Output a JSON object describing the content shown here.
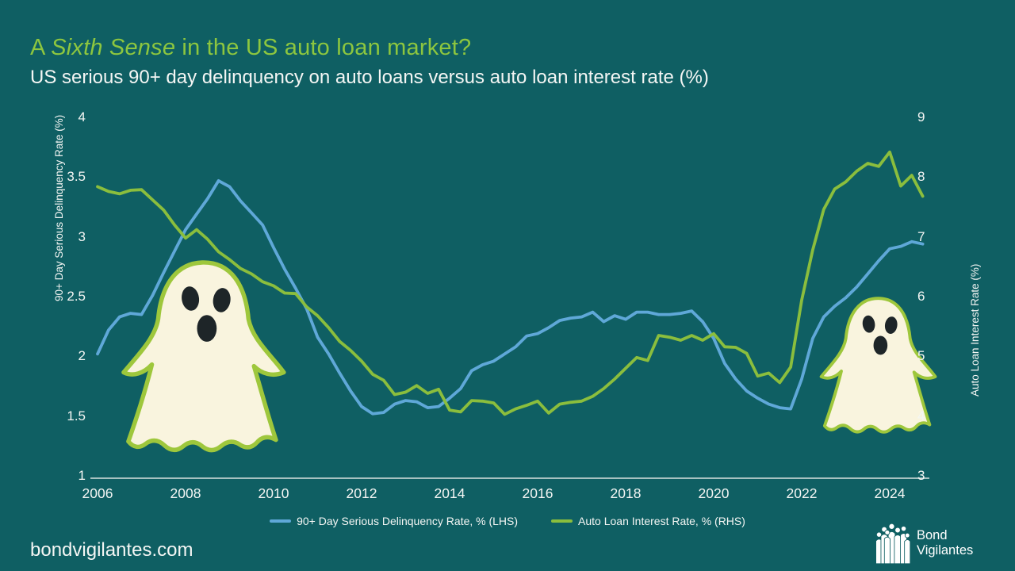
{
  "slide": {
    "title": {
      "prefix": "A ",
      "italic": "Sixth Sense",
      "suffix": " in the US auto loan market?"
    },
    "subtitle": "US serious 90+ day delinquency on auto loans versus auto loan interest rate (%)",
    "footer_url": "bondvigilantes.com",
    "logo": {
      "icon": "bond-vigilantes-people-icon",
      "line1": "Bond",
      "line2": "Vigilantes"
    }
  },
  "colors": {
    "background": "#0F5F63",
    "title_green": "#8DC63F",
    "text": "#F4F6F4",
    "delinquency_blue": "#5FA8D8",
    "interest_green": "#8BBE3D",
    "ghost_fill": "#F9F4DE",
    "ghost_stroke": "#9EC73C",
    "axis_line": "#D9E2E0"
  },
  "chart_data": {
    "type": "line",
    "title": "US serious 90+ day delinquency on auto loans versus auto loan interest rate (%)",
    "grid": false,
    "legend_position": "bottom",
    "x_axis": {
      "label": "",
      "ticks": [
        2006,
        2008,
        2010,
        2012,
        2014,
        2016,
        2018,
        2020,
        2022,
        2024
      ],
      "range": [
        2005.9,
        2025.2
      ]
    },
    "left_axis": {
      "label": "90+ Day Serious Delinquency Rate (%)",
      "ticks": [
        1,
        1.5,
        2,
        2.5,
        3,
        3.5,
        4
      ],
      "range": [
        1,
        4
      ]
    },
    "right_axis": {
      "label": "Auto Loan Interest Rate (%)",
      "ticks": [
        3,
        4,
        5,
        6,
        7,
        8,
        9
      ],
      "range": [
        3,
        9
      ]
    },
    "legend": [
      {
        "label": "90+ Day Serious Delinquency Rate, % (LHS)",
        "color": "#5FA8D8"
      },
      {
        "label": "Auto Loan Interest Rate, % (RHS)",
        "color": "#8BBE3D"
      }
    ],
    "x": [
      2006.0,
      2006.25,
      2006.5,
      2006.75,
      2007.0,
      2007.25,
      2007.5,
      2007.75,
      2008.0,
      2008.25,
      2008.5,
      2008.75,
      2009.0,
      2009.25,
      2009.5,
      2009.75,
      2010.0,
      2010.25,
      2010.5,
      2010.75,
      2011.0,
      2011.25,
      2011.5,
      2011.75,
      2012.0,
      2012.25,
      2012.5,
      2012.75,
      2013.0,
      2013.25,
      2013.5,
      2013.75,
      2014.0,
      2014.25,
      2014.5,
      2014.75,
      2015.0,
      2015.25,
      2015.5,
      2015.75,
      2016.0,
      2016.25,
      2016.5,
      2016.75,
      2017.0,
      2017.25,
      2017.5,
      2017.75,
      2018.0,
      2018.25,
      2018.5,
      2018.75,
      2019.0,
      2019.25,
      2019.5,
      2019.75,
      2020.0,
      2020.25,
      2020.5,
      2020.75,
      2021.0,
      2021.25,
      2021.5,
      2021.75,
      2022.0,
      2022.25,
      2022.5,
      2022.75,
      2023.0,
      2023.25,
      2023.5,
      2023.75,
      2024.0,
      2024.25,
      2024.5,
      2024.75
    ],
    "series": [
      {
        "name": "90+ Day Serious Delinquency Rate, % (LHS)",
        "axis": "left",
        "color": "#5FA8D8",
        "values": [
          2.02,
          2.22,
          2.33,
          2.36,
          2.35,
          2.51,
          2.7,
          2.88,
          3.06,
          3.19,
          3.32,
          3.47,
          3.42,
          3.3,
          3.2,
          3.1,
          2.91,
          2.73,
          2.57,
          2.4,
          2.16,
          2.02,
          1.86,
          1.71,
          1.58,
          1.52,
          1.53,
          1.6,
          1.63,
          1.62,
          1.57,
          1.58,
          1.65,
          1.73,
          1.88,
          1.93,
          1.96,
          2.02,
          2.08,
          2.17,
          2.19,
          2.24,
          2.3,
          2.32,
          2.33,
          2.37,
          2.29,
          2.34,
          2.31,
          2.37,
          2.37,
          2.35,
          2.35,
          2.36,
          2.38,
          2.29,
          2.15,
          1.94,
          1.81,
          1.71,
          1.65,
          1.6,
          1.57,
          1.56,
          1.81,
          2.15,
          2.33,
          2.42,
          2.49,
          2.58,
          2.69,
          2.8,
          2.9,
          2.92,
          2.96,
          2.94
        ]
      },
      {
        "name": "Auto Loan Interest Rate, % (RHS)",
        "axis": "right",
        "color": "#8BBE3D",
        "values": [
          7.84,
          7.76,
          7.72,
          7.78,
          7.79,
          7.62,
          7.45,
          7.2,
          6.98,
          7.12,
          6.96,
          6.75,
          6.62,
          6.47,
          6.38,
          6.25,
          6.18,
          6.06,
          6.05,
          5.83,
          5.68,
          5.48,
          5.25,
          5.1,
          4.92,
          4.7,
          4.6,
          4.36,
          4.4,
          4.51,
          4.38,
          4.45,
          4.1,
          4.07,
          4.26,
          4.25,
          4.22,
          4.03,
          4.12,
          4.18,
          4.25,
          4.05,
          4.2,
          4.23,
          4.25,
          4.33,
          4.46,
          4.62,
          4.8,
          4.98,
          4.93,
          5.35,
          5.32,
          5.27,
          5.35,
          5.27,
          5.38,
          5.16,
          5.15,
          5.05,
          4.67,
          4.72,
          4.56,
          4.82,
          5.94,
          6.78,
          7.46,
          7.8,
          7.92,
          8.1,
          8.23,
          8.18,
          8.42,
          7.85,
          8.03,
          7.68
        ]
      }
    ],
    "annotations": [
      {
        "name": "ghost-illustration-large",
        "note": "ghost cartoon over 2007-2010 region"
      },
      {
        "name": "ghost-illustration-small",
        "note": "ghost cartoon over 2022-2024 region"
      }
    ]
  }
}
